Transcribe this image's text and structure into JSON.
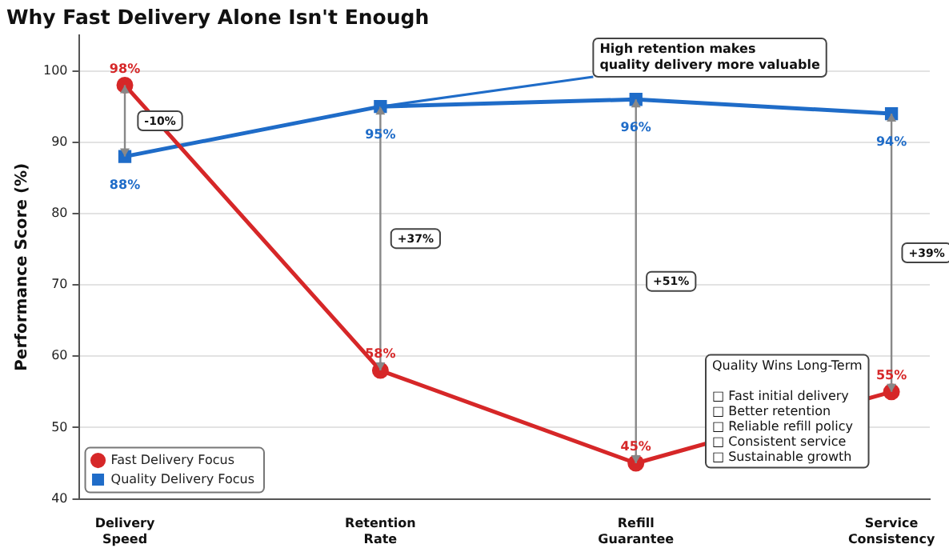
{
  "chart_data": {
    "type": "line",
    "title": "Why Fast Delivery Alone Isn't Enough",
    "ylabel": "Performance Score (%)",
    "categories": [
      "Delivery Speed",
      "Retention Rate",
      "Refill Guarantee",
      "Service Consistency"
    ],
    "series": [
      {
        "name": "Fast Delivery Focus",
        "color": "#d62728",
        "marker": "circle",
        "values": [
          98,
          58,
          45,
          55
        ],
        "value_labels": [
          "98%",
          "58%",
          "45%",
          "55%"
        ]
      },
      {
        "name": "Quality Delivery Focus",
        "color": "#1f6cc8",
        "marker": "square",
        "values": [
          88,
          95,
          96,
          94
        ],
        "value_labels": [
          "88%",
          "95%",
          "96%",
          "94%"
        ]
      }
    ],
    "ylim": [
      40,
      105
    ],
    "yticks": [
      40,
      50,
      60,
      70,
      80,
      90,
      100
    ],
    "grid": "y",
    "legend": "bottom left",
    "annotations": [
      "-10%",
      "+37%",
      "+51%",
      "+39%",
      {
        "text": "High retention makes\nquality delivery more valuable",
        "x": "Retention Rate",
        "y": 95
      },
      "Quality Wins Long-Term\n\n□ Fast initial delivery\n□ Better retention\n□ Reliable refill policy\n□ Consistent service\n□ Sustainable growth"
    ]
  }
}
